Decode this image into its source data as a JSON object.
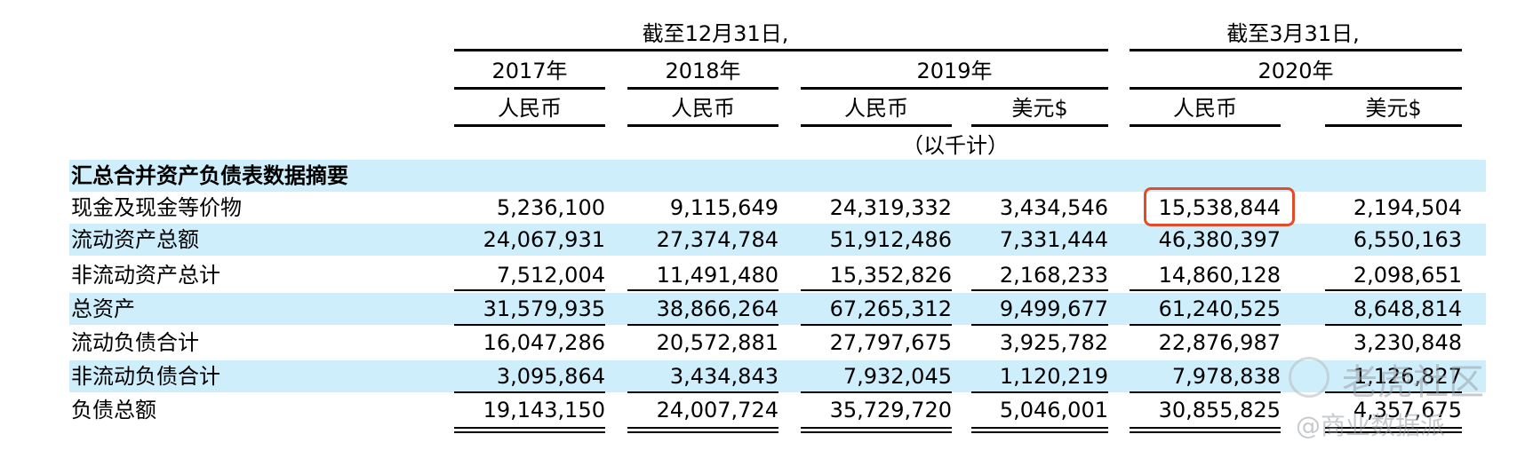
{
  "table": {
    "period_groups": [
      {
        "label": "截至12月31日,"
      },
      {
        "label": "截至3月31日,"
      }
    ],
    "years": [
      "2017年",
      "2018年",
      "2019年",
      "2020年"
    ],
    "currency_row": [
      "人民币",
      "人民币",
      "人民币",
      "美元$",
      "人民币",
      "美元$"
    ],
    "unit_note": "（以千计）",
    "section_title": "汇总合并资产负债表数据摘要",
    "rows": [
      {
        "label": "现金及现金等价物",
        "values": [
          "5,236,100",
          "9,115,649",
          "24,319,332",
          "3,434,546",
          "15,538,844",
          "2,194,504"
        ]
      },
      {
        "label": "流动资产总额",
        "values": [
          "24,067,931",
          "27,374,784",
          "51,912,486",
          "7,331,444",
          "46,380,397",
          "6,550,163"
        ]
      },
      {
        "label": "非流动资产总计",
        "values": [
          "7,512,004",
          "11,491,480",
          "15,352,826",
          "2,168,233",
          "14,860,128",
          "2,098,651"
        ]
      },
      {
        "label": "总资产",
        "values": [
          "31,579,935",
          "38,866,264",
          "67,265,312",
          "9,499,677",
          "61,240,525",
          "8,648,814"
        ]
      },
      {
        "label": "流动负债合计",
        "values": [
          "16,047,286",
          "20,572,881",
          "27,797,675",
          "3,925,782",
          "22,876,987",
          "3,230,848"
        ]
      },
      {
        "label": "非流动负债合计",
        "values": [
          "3,095,864",
          "3,434,843",
          "7,932,045",
          "1,120,219",
          "7,978,838",
          "1,126,827"
        ]
      },
      {
        "label": "负债总额",
        "values": [
          "19,143,150",
          "24,007,724",
          "35,729,720",
          "5,046,001",
          "30,855,825",
          "4,357,675"
        ]
      }
    ],
    "band_color": "#cfeefb",
    "highlight_color": "#e34b2a"
  },
  "watermark": {
    "name": "老虎社区",
    "handle": "@商业数据派"
  }
}
